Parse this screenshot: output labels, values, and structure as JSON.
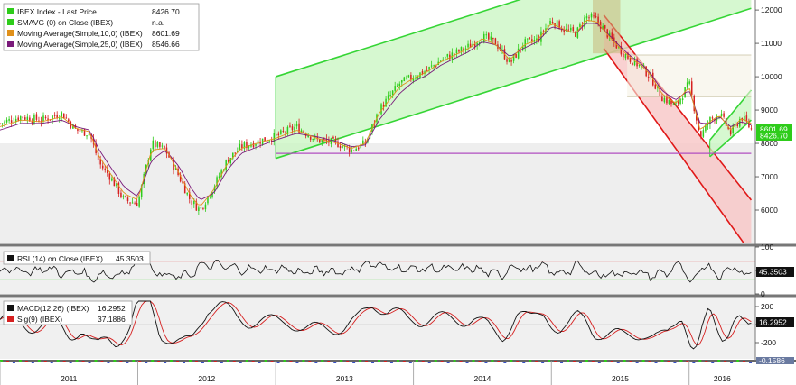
{
  "colors": {
    "bull": "#2ecc1a",
    "bear": "#d62020",
    "ma10": "#e0901a",
    "ma25": "#7a1a7a",
    "up_channel_fill": "#c8f5c0",
    "up_channel_line": "#35d535",
    "down_channel_fill": "#f7c6c6",
    "down_channel_line": "#e01818",
    "rsi_line": "#111111",
    "macd_line": "#111111",
    "signal_line": "#d62020",
    "support_line": "#b04fc0",
    "grid_bg": "#eeeeee"
  },
  "chart_data": [
    {
      "type": "line",
      "panel": "price",
      "legend": [
        {
          "label": "IBEX Index - Last Price",
          "value": "8426.70",
          "color": "#2ecc1a"
        },
        {
          "label": "SMAVG (0) on Close (IBEX)",
          "value": "n.a.",
          "color": "#2ecc1a"
        },
        {
          "label": "Moving Average(Simple,10,0) (IBEX)",
          "value": "8601.69",
          "color": "#e0901a"
        },
        {
          "label": "Moving Average(Simple,25,0) (IBEX)",
          "value": "8546.66",
          "color": "#7a1a7a"
        }
      ],
      "ylim": [
        5000,
        12300
      ],
      "yticks": [
        6000,
        7000,
        8000,
        9000,
        10000,
        11000,
        12000
      ],
      "last_value_tags": [
        {
          "value": "8426.70",
          "y": 8426.7,
          "color": "#2ecc1a"
        },
        {
          "value": "8601.69",
          "y": 8601.69,
          "color": "#e0901a"
        }
      ],
      "x": [
        2011.0,
        2011.15,
        2011.3,
        2011.45,
        2011.55,
        2011.65,
        2011.72,
        2011.8,
        2011.9,
        2012.0,
        2012.1,
        2012.2,
        2012.3,
        2012.38,
        2012.45,
        2012.55,
        2012.65,
        2012.75,
        2012.9,
        2013.0,
        2013.15,
        2013.3,
        2013.45,
        2013.55,
        2013.65,
        2013.75,
        2013.9,
        2014.0,
        2014.1,
        2014.2,
        2014.3,
        2014.4,
        2014.5,
        2014.6,
        2014.7,
        2014.8,
        2014.9,
        2015.0,
        2015.1,
        2015.18,
        2015.25,
        2015.33,
        2015.42,
        2015.5,
        2015.58,
        2015.65,
        2015.72,
        2015.8,
        2015.9,
        2016.0,
        2016.08,
        2016.15,
        2016.22,
        2016.3,
        2016.38,
        2016.45
      ],
      "close": [
        8600,
        8800,
        8700,
        8900,
        8400,
        8300,
        7400,
        7000,
        6300,
        6200,
        8000,
        7800,
        7000,
        6300,
        6000,
        6700,
        7500,
        7900,
        8100,
        8200,
        8500,
        8100,
        8000,
        7800,
        8000,
        9000,
        9800,
        10000,
        10200,
        10500,
        10700,
        10900,
        11200,
        11000,
        10400,
        11000,
        11100,
        11700,
        11400,
        11300,
        11800,
        11700,
        11200,
        10800,
        10500,
        10300,
        10000,
        9400,
        9100,
        9800,
        8200,
        8700,
        8900,
        8300,
        8800,
        8426.7
      ],
      "ma10": [
        8500,
        8700,
        8650,
        8800,
        8450,
        8350,
        7600,
        7100,
        6500,
        6300,
        7800,
        7850,
        7100,
        6450,
        6100,
        6600,
        7400,
        7850,
        8050,
        8150,
        8400,
        8150,
        8000,
        7850,
        8000,
        8900,
        9700,
        9950,
        10150,
        10450,
        10650,
        10850,
        11150,
        10950,
        10500,
        10950,
        11100,
        11600,
        11400,
        11300,
        11700,
        11650,
        11200,
        10850,
        10550,
        10350,
        10050,
        9500,
        9200,
        9700,
        8400,
        8650,
        8850,
        8400,
        8750,
        8601.69
      ],
      "ma25": [
        8400,
        8600,
        8600,
        8700,
        8500,
        8400,
        7800,
        7300,
        6700,
        6400,
        7500,
        7800,
        7300,
        6700,
        6300,
        6500,
        7200,
        7700,
        7950,
        8100,
        8300,
        8200,
        8050,
        7900,
        7950,
        8700,
        9500,
        9850,
        10050,
        10350,
        10550,
        10750,
        11050,
        10950,
        10600,
        10850,
        11050,
        11500,
        11400,
        11300,
        11600,
        11600,
        11250,
        10900,
        10600,
        10400,
        10100,
        9600,
        9300,
        9600,
        8600,
        8600,
        8800,
        8500,
        8650,
        8546.66
      ],
      "annotations": [
        {
          "kind": "up_channel",
          "x0": 2013.0,
          "x1": 2016.45,
          "lower0": 7550,
          "lower1": 12050,
          "upper0": 10000,
          "upper1": 14500
        },
        {
          "kind": "down_channel",
          "x0": 2015.38,
          "x1": 2016.45,
          "upper0": 11850,
          "upper1": 6300,
          "lower0": 10850,
          "lower1": 4700
        },
        {
          "kind": "small_up_channel",
          "x0": 2016.15,
          "x1": 2016.45,
          "lower0": 7600,
          "lower1": 8700,
          "upper0": 8100,
          "upper1": 9600
        },
        {
          "kind": "support",
          "x0": 2013.0,
          "x1": 2016.45,
          "y": 7700
        },
        {
          "kind": "resistance_band",
          "x0": 2015.55,
          "x1": 2016.45,
          "y0": 9400,
          "y1": 10650
        },
        {
          "kind": "shaded_box",
          "x0": 2015.3,
          "x1": 2015.5,
          "y0": 10700,
          "y1": 12300
        }
      ]
    },
    {
      "type": "line",
      "panel": "rsi",
      "legend": [
        {
          "label": "RSI (14) on Close (IBEX)",
          "value": "45.3503",
          "color": "#111111"
        }
      ],
      "ylim": [
        0,
        100
      ],
      "yticks": [
        0,
        50,
        100
      ],
      "bands": [
        70,
        30
      ],
      "last_value_tag": "45.3503",
      "last": 45.35
    },
    {
      "type": "line",
      "panel": "macd",
      "legend": [
        {
          "label": "MACD(12,26) (IBEX)",
          "value": "16.2952",
          "color": "#111111"
        },
        {
          "label": "Sig(9) (IBEX)",
          "value": "37.1886",
          "color": "#d62020"
        }
      ],
      "ylim": [
        -380,
        300
      ],
      "yticks": [
        -200,
        0,
        200
      ],
      "last_value_tag": "16.2952",
      "last": 16.2952
    }
  ],
  "x_axis": {
    "years": [
      "2011",
      "2012",
      "2013",
      "2014",
      "2015",
      "2016"
    ],
    "year_values": [
      2011.0,
      2012.0,
      2013.0,
      2014.0,
      2015.0,
      2016.0
    ],
    "xlim": [
      2011.0,
      2016.48
    ]
  },
  "bottom_tag": "-0.1586"
}
